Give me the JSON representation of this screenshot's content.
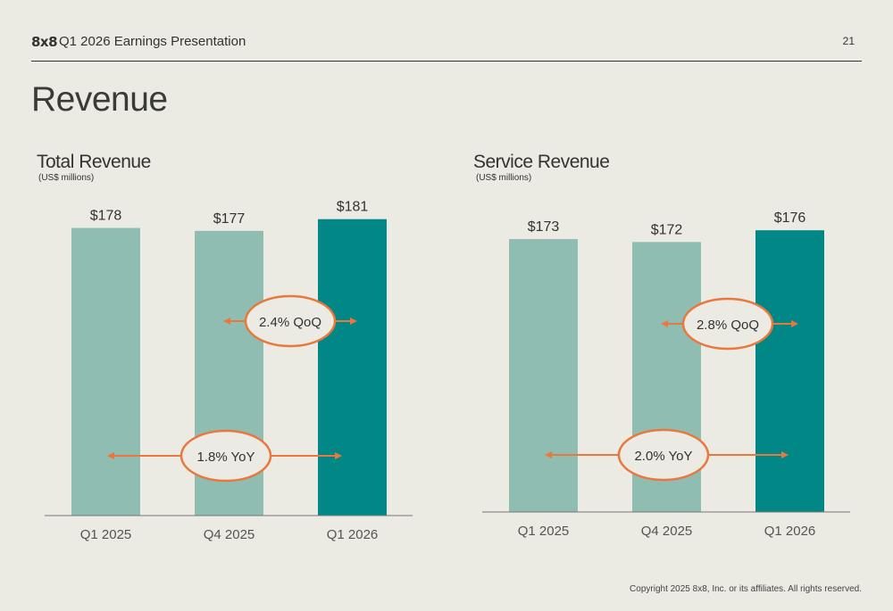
{
  "header": {
    "logo": "8x8",
    "title": "Q1 2026 Earnings Presentation",
    "page_number": "21"
  },
  "page_title": "Revenue",
  "footer": {
    "copyright": "Copyright 2025 8x8, Inc. or its affiliates. All rights reserved."
  },
  "colors": {
    "bar_light": "#8fbdb2",
    "bar_accent": "#028787",
    "annotation": "#e8783e",
    "background": "#ebeae3",
    "text": "#333330"
  },
  "chart_data": [
    {
      "type": "bar",
      "title": "Total Revenue",
      "subtitle": "(US$ millions)",
      "categories": [
        "Q1 2025",
        "Q4 2025",
        "Q1 2026"
      ],
      "values": [
        178,
        177,
        181
      ],
      "value_labels": [
        "$178",
        "$177",
        "$181"
      ],
      "highlight_index": 2,
      "annotations": [
        {
          "label": "2.4% QoQ",
          "from": "Q4 2025",
          "to": "Q1 2026"
        },
        {
          "label": "1.8% YoY",
          "from": "Q1 2025",
          "to": "Q1 2026"
        }
      ]
    },
    {
      "type": "bar",
      "title": "Service Revenue",
      "subtitle": "(US$ millions)",
      "categories": [
        "Q1 2025",
        "Q4 2025",
        "Q1 2026"
      ],
      "values": [
        173,
        172,
        176
      ],
      "value_labels": [
        "$173",
        "$172",
        "$176"
      ],
      "highlight_index": 2,
      "annotations": [
        {
          "label": "2.8% QoQ",
          "from": "Q4 2025",
          "to": "Q1 2026"
        },
        {
          "label": "2.0% YoY",
          "from": "Q1 2025",
          "to": "Q1 2026"
        }
      ]
    }
  ]
}
